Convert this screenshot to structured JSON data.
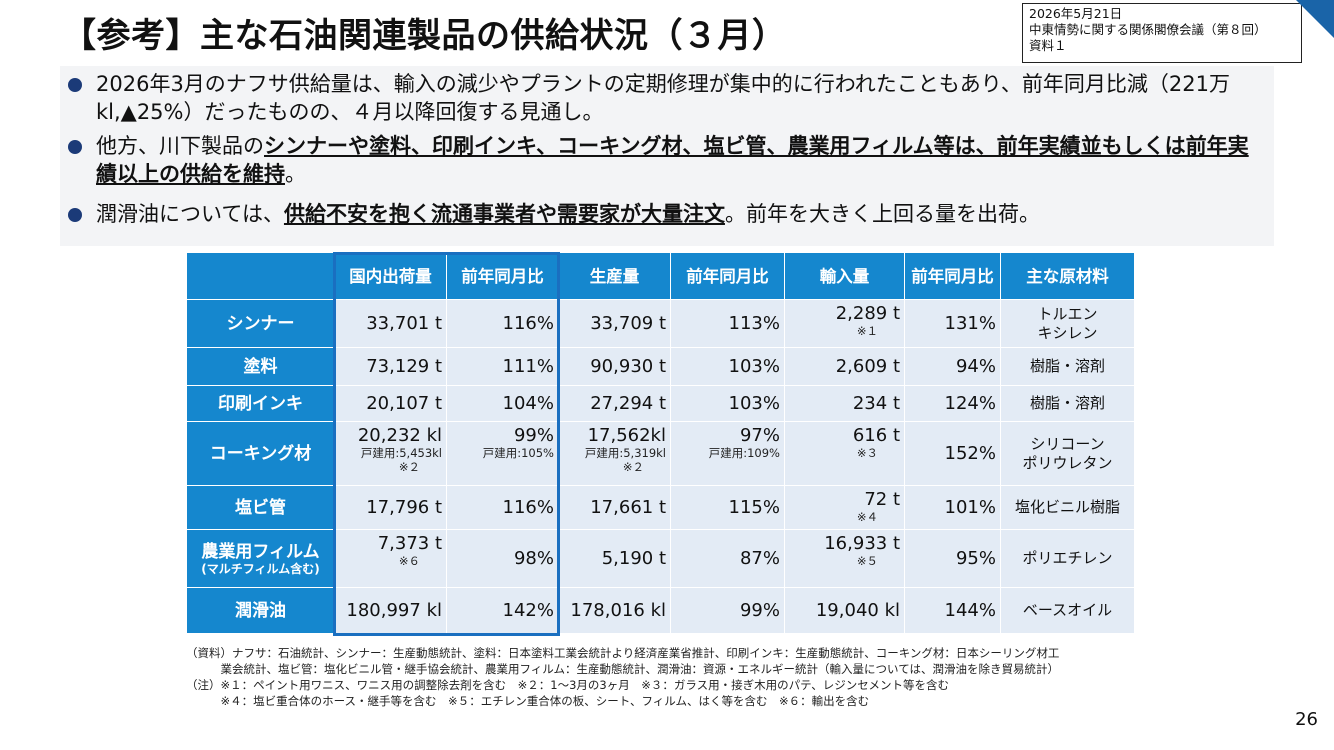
{
  "title": "【参考】主な石油関連製品の供給状況（３月）",
  "meta": {
    "date": "2026年5月21日",
    "meeting": "中東情勢に関する関係閣僚会議（第８回）",
    "doc": "資料１"
  },
  "bullets": [
    {
      "pre": "2026年3月のナフサ供給量は、輸入の減少やプラントの定期修理が集中的に行われたこともあり、前年同月比減（221万kl,▲25%）だったものの、４月以降回復する見通し。",
      "bold": "",
      "post": ""
    },
    {
      "pre": "他方、川下製品の",
      "bold": "シンナーや塗料、印刷インキ、コーキング材、塩ビ管、農業用フィルム等は、前年実績並もしくは前年実績以上の供給を維持",
      "post": "。"
    },
    {
      "pre": "潤滑油については、",
      "bold": "供給不安を抱く流通事業者や需要家が大量注文",
      "post": "。前年を大きく上回る量を出荷。"
    }
  ],
  "table": {
    "headers": [
      "国内出荷量",
      "前年同月比",
      "生産量",
      "前年同月比",
      "輸入量",
      "前年同月比",
      "主な原材料"
    ],
    "rows": [
      {
        "name": "シンナー",
        "sub": "",
        "ship": "33,701 t",
        "ship_sub": "",
        "ship_note": "",
        "ship_yoy": "116%",
        "ship_yoy_sub": "",
        "prod": "33,709 t",
        "prod_sub": "",
        "prod_note": "",
        "prod_yoy": "113%",
        "prod_yoy_sub": "",
        "imp": "2,289 t",
        "imp_note": "※１",
        "imp_yoy": "131%",
        "mat1": "トルエン",
        "mat2": "キシレン"
      },
      {
        "name": "塗料",
        "sub": "",
        "ship": "73,129 t",
        "ship_sub": "",
        "ship_note": "",
        "ship_yoy": "111%",
        "ship_yoy_sub": "",
        "prod": "90,930 t",
        "prod_sub": "",
        "prod_note": "",
        "prod_yoy": "103%",
        "prod_yoy_sub": "",
        "imp": "2,609 t",
        "imp_note": "",
        "imp_yoy": "94%",
        "mat1": "樹脂・溶剤",
        "mat2": ""
      },
      {
        "name": "印刷インキ",
        "sub": "",
        "ship": "20,107 t",
        "ship_sub": "",
        "ship_note": "",
        "ship_yoy": "104%",
        "ship_yoy_sub": "",
        "prod": "27,294 t",
        "prod_sub": "",
        "prod_note": "",
        "prod_yoy": "103%",
        "prod_yoy_sub": "",
        "imp": "234 t",
        "imp_note": "",
        "imp_yoy": "124%",
        "mat1": "樹脂・溶剤",
        "mat2": ""
      },
      {
        "name": "コーキング材",
        "sub": "",
        "ship": "20,232 kl",
        "ship_sub": "戸建用:5,453kl",
        "ship_note": "※２",
        "ship_yoy": "99%",
        "ship_yoy_sub": "戸建用:105%",
        "prod": "17,562kl",
        "prod_sub": "戸建用:5,319kl",
        "prod_note": "※２",
        "prod_yoy": "97%",
        "prod_yoy_sub": "戸建用:109%",
        "imp": "616 t",
        "imp_note": "※３",
        "imp_yoy": "152%",
        "mat1": "シリコーン",
        "mat2": "ポリウレタン"
      },
      {
        "name": "塩ビ管",
        "sub": "",
        "ship": "17,796 t",
        "ship_sub": "",
        "ship_note": "",
        "ship_yoy": "116%",
        "ship_yoy_sub": "",
        "prod": "17,661 t",
        "prod_sub": "",
        "prod_note": "",
        "prod_yoy": "115%",
        "prod_yoy_sub": "",
        "imp": "72 t",
        "imp_note": "※４",
        "imp_yoy": "101%",
        "mat1": "塩化ビニル樹脂",
        "mat2": ""
      },
      {
        "name": "農業用フィルム",
        "sub": "(マルチフィルム含む)",
        "ship": "7,373 t",
        "ship_sub": "",
        "ship_note": "※６",
        "ship_yoy": "98%",
        "ship_yoy_sub": "",
        "prod": "5,190 t",
        "prod_sub": "",
        "prod_note": "",
        "prod_yoy": "87%",
        "prod_yoy_sub": "",
        "imp": "16,933 t",
        "imp_note": "※５",
        "imp_yoy": "95%",
        "mat1": "ポリエチレン",
        "mat2": ""
      },
      {
        "name": "潤滑油",
        "sub": "",
        "ship": "180,997 kl",
        "ship_sub": "",
        "ship_note": "",
        "ship_yoy": "142%",
        "ship_yoy_sub": "",
        "prod": "178,016 kl",
        "prod_sub": "",
        "prod_note": "",
        "prod_yoy": "99%",
        "prod_yoy_sub": "",
        "imp": "19,040 kl",
        "imp_note": "",
        "imp_yoy": "144%",
        "mat1": "ベースオイル",
        "mat2": ""
      }
    ]
  },
  "footnotes": [
    "（資料）ナフサ：石油統計、シンナー：生産動態統計、塗料：日本塗料工業会統計より経済産業省推計、印刷インキ：生産動態統計、コーキング材：日本シーリング材工",
    "　　　業会統計、塩ビ管：塩化ビニル管・継手協会統計、農業用フィルム：生産動態統計、潤滑油：資源・エネルギー統計（輸入量については、潤滑油を除き貿易統計）",
    "（注）※１：ペイント用ワニス、ワニス用の調整除去剤を含む　※２：1～3月の3ヶ月　※３：ガラス用・接ぎ木用のパテ、レジンセメント等を含む",
    "　　　※４：塩ビ重合体のホース・継手等を含む　※５：エチレン重合体の板、シート、フィルム、はく等を含む　※６：輸出を含む"
  ],
  "page_number": "26"
}
